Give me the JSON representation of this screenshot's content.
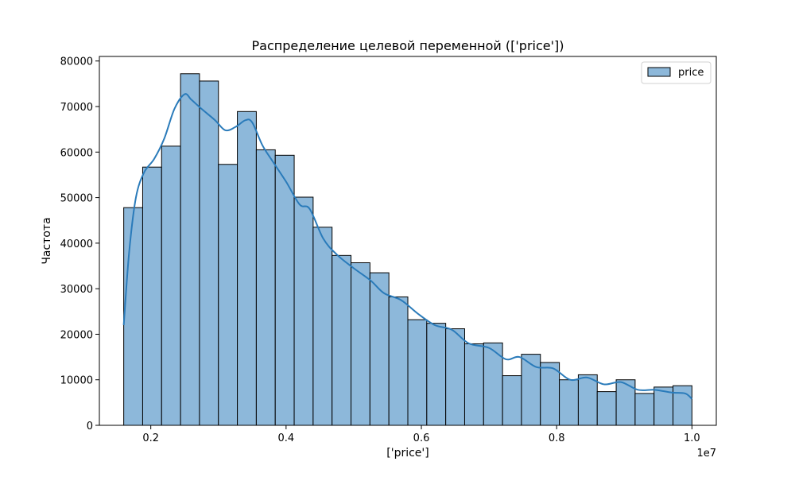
{
  "chart_data": {
    "type": "bar",
    "title": "Распределение целевой переменной (['price'])",
    "xlabel": "['price']",
    "ylabel": "Частота",
    "x_offset_text": "1e7",
    "xlim": [
      1240000,
      10360000
    ],
    "ylim": [
      0,
      81000
    ],
    "x_ticks": [
      {
        "value": 2000000,
        "label": "0.2"
      },
      {
        "value": 4000000,
        "label": "0.4"
      },
      {
        "value": 6000000,
        "label": "0.6"
      },
      {
        "value": 8000000,
        "label": "0.8"
      },
      {
        "value": 10000000,
        "label": "1.0"
      }
    ],
    "y_ticks": [
      {
        "value": 0,
        "label": "0"
      },
      {
        "value": 10000,
        "label": "10000"
      },
      {
        "value": 20000,
        "label": "20000"
      },
      {
        "value": 30000,
        "label": "30000"
      },
      {
        "value": 40000,
        "label": "40000"
      },
      {
        "value": 50000,
        "label": "50000"
      },
      {
        "value": 60000,
        "label": "60000"
      },
      {
        "value": 70000,
        "label": "70000"
      },
      {
        "value": 80000,
        "label": "80000"
      }
    ],
    "bin_start": 1600000,
    "bin_end": 10000000,
    "series": [
      {
        "name": "price",
        "type": "histogram",
        "counts": [
          47800,
          56700,
          61300,
          77200,
          75600,
          57300,
          68900,
          60500,
          59300,
          50100,
          43500,
          37300,
          35700,
          33500,
          28200,
          23200,
          22400,
          21200,
          17900,
          18100,
          10900,
          15600,
          13800,
          10000,
          11100,
          7400,
          10000,
          7000,
          8400,
          8700
        ],
        "kde_x": [
          1600000,
          1680000,
          1780000,
          1900000,
          2050000,
          2200000,
          2350000,
          2500000,
          2600000,
          2750000,
          2950000,
          3100000,
          3250000,
          3400000,
          3500000,
          3650000,
          3800000,
          4000000,
          4200000,
          4350000,
          4550000,
          4750000,
          5000000,
          5250000,
          5450000,
          5700000,
          5950000,
          6200000,
          6450000,
          6700000,
          7000000,
          7250000,
          7450000,
          7700000,
          7950000,
          8200000,
          8450000,
          8700000,
          8950000,
          9200000,
          9450000,
          9700000,
          9900000,
          10000000
        ],
        "kde_y": [
          22000,
          38000,
          50000,
          55500,
          58500,
          63000,
          69500,
          72700,
          71500,
          69500,
          67000,
          64800,
          65500,
          67000,
          66500,
          61500,
          58000,
          53500,
          48500,
          47500,
          41000,
          37500,
          34500,
          31800,
          29000,
          27500,
          24500,
          22000,
          21000,
          18000,
          17000,
          14500,
          15000,
          12800,
          12500,
          10000,
          10500,
          9000,
          9500,
          7800,
          7800,
          7200,
          7000,
          5800
        ]
      }
    ],
    "legend": {
      "position": "top-right",
      "entries": [
        "price"
      ]
    },
    "grid": false,
    "colors": {
      "bar_fill": "#8db8da",
      "bar_edge": "#000000",
      "kde_line": "#2a7bba"
    }
  }
}
